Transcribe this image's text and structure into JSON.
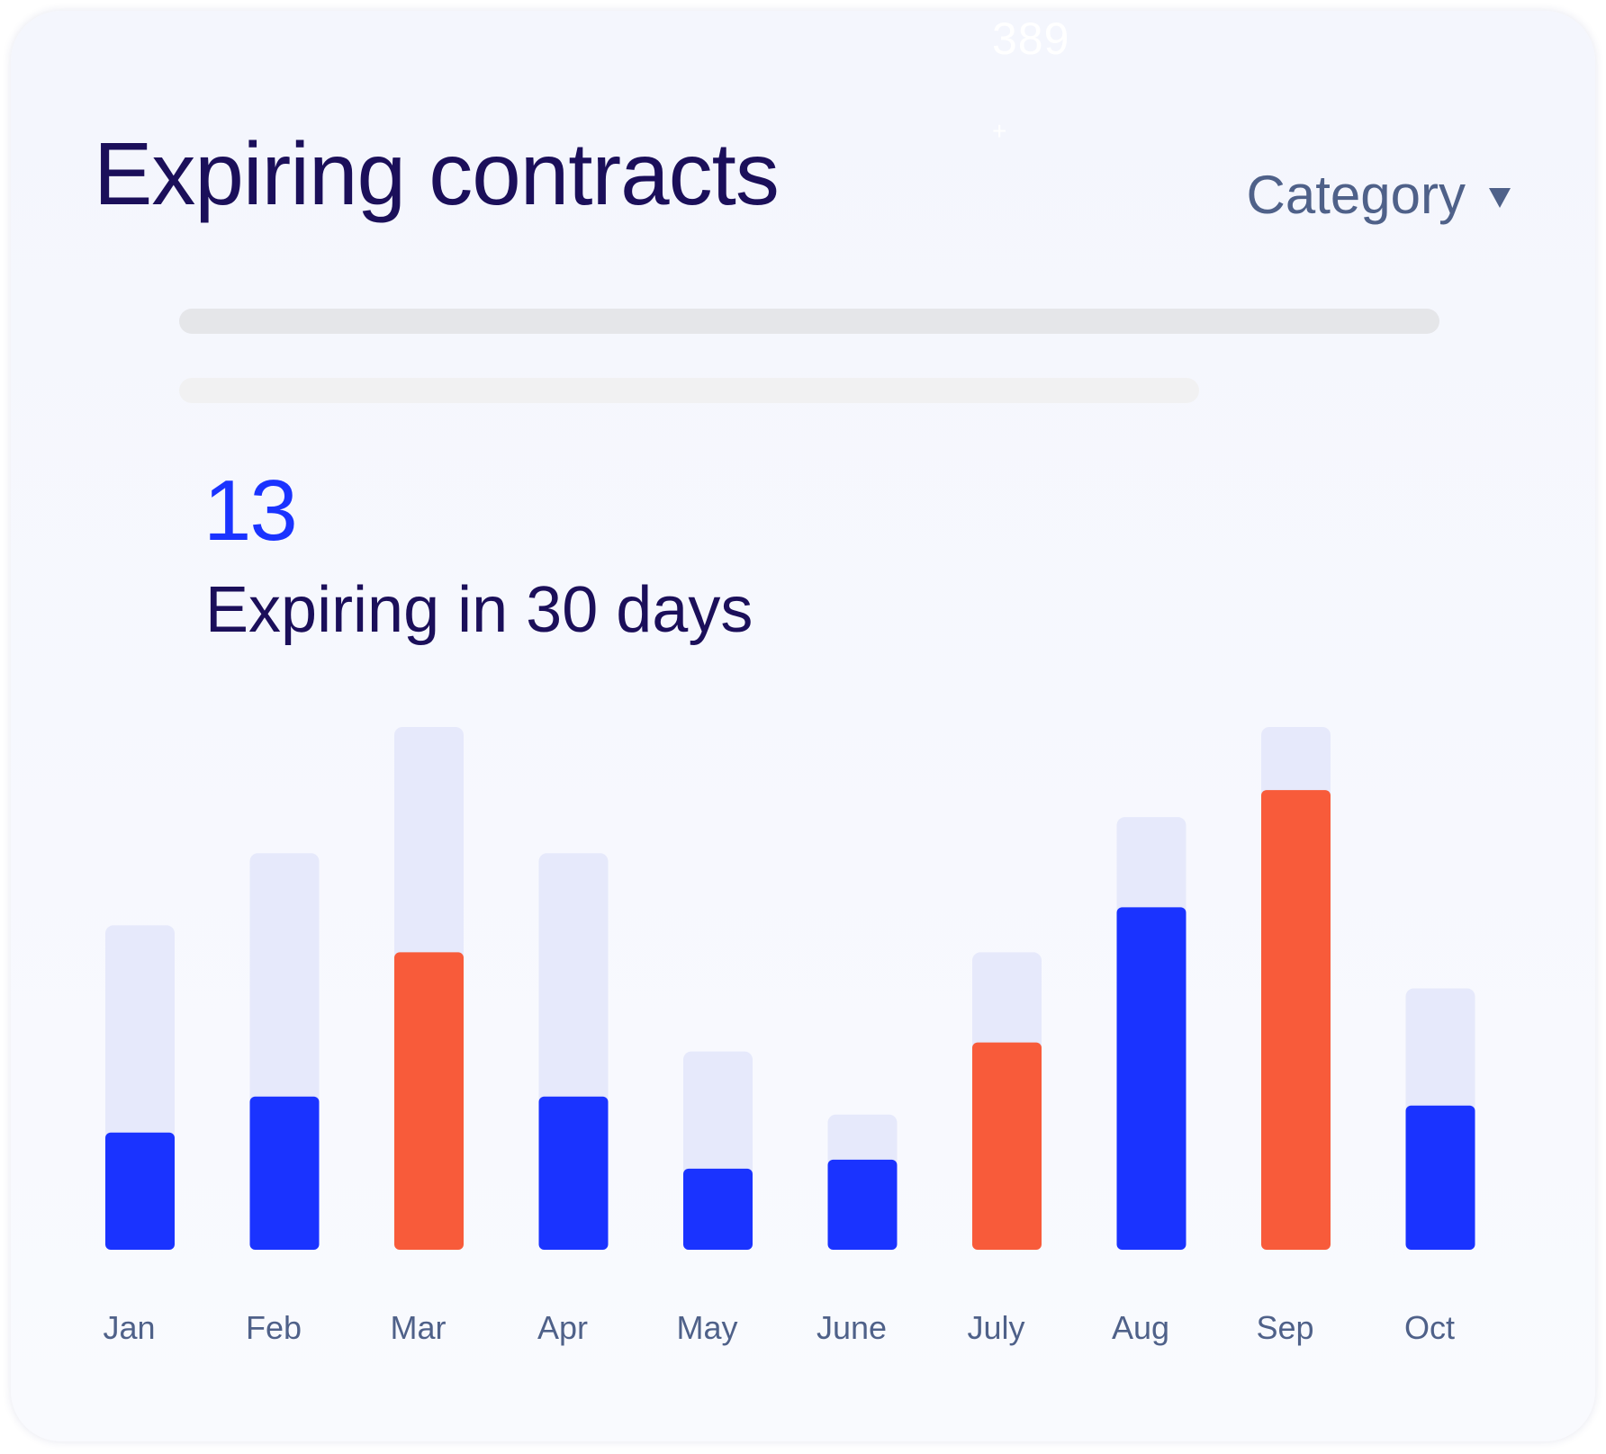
{
  "card": {
    "ghost_number": "389",
    "ghost_plus": "+",
    "title": "Expiring contracts",
    "dropdown_label": "Category",
    "dropdown_icon": "caret-down-icon"
  },
  "summary": {
    "count": "13",
    "label": "Expiring in 30 days"
  },
  "colors": {
    "track": "#e6e9fb",
    "blue": "#1a33ff",
    "orange": "#f85b3a",
    "title": "#1b0f5a",
    "muted": "#4f6189"
  },
  "chart_data": {
    "type": "bar",
    "categories": [
      "Jan",
      "Feb",
      "Mar",
      "Apr",
      "May",
      "June",
      "July",
      "Aug",
      "Sep",
      "Oct"
    ],
    "track_values": [
      36,
      44,
      58,
      44,
      22,
      15,
      33,
      48,
      58,
      29
    ],
    "fill_values": [
      13,
      17,
      33,
      17,
      9,
      10,
      23,
      38,
      51,
      16
    ],
    "fill_colors": [
      "blue",
      "blue",
      "orange",
      "blue",
      "blue",
      "blue",
      "orange",
      "blue",
      "orange",
      "blue"
    ],
    "ylim": [
      0,
      58
    ],
    "grid": false,
    "legend": "none"
  }
}
